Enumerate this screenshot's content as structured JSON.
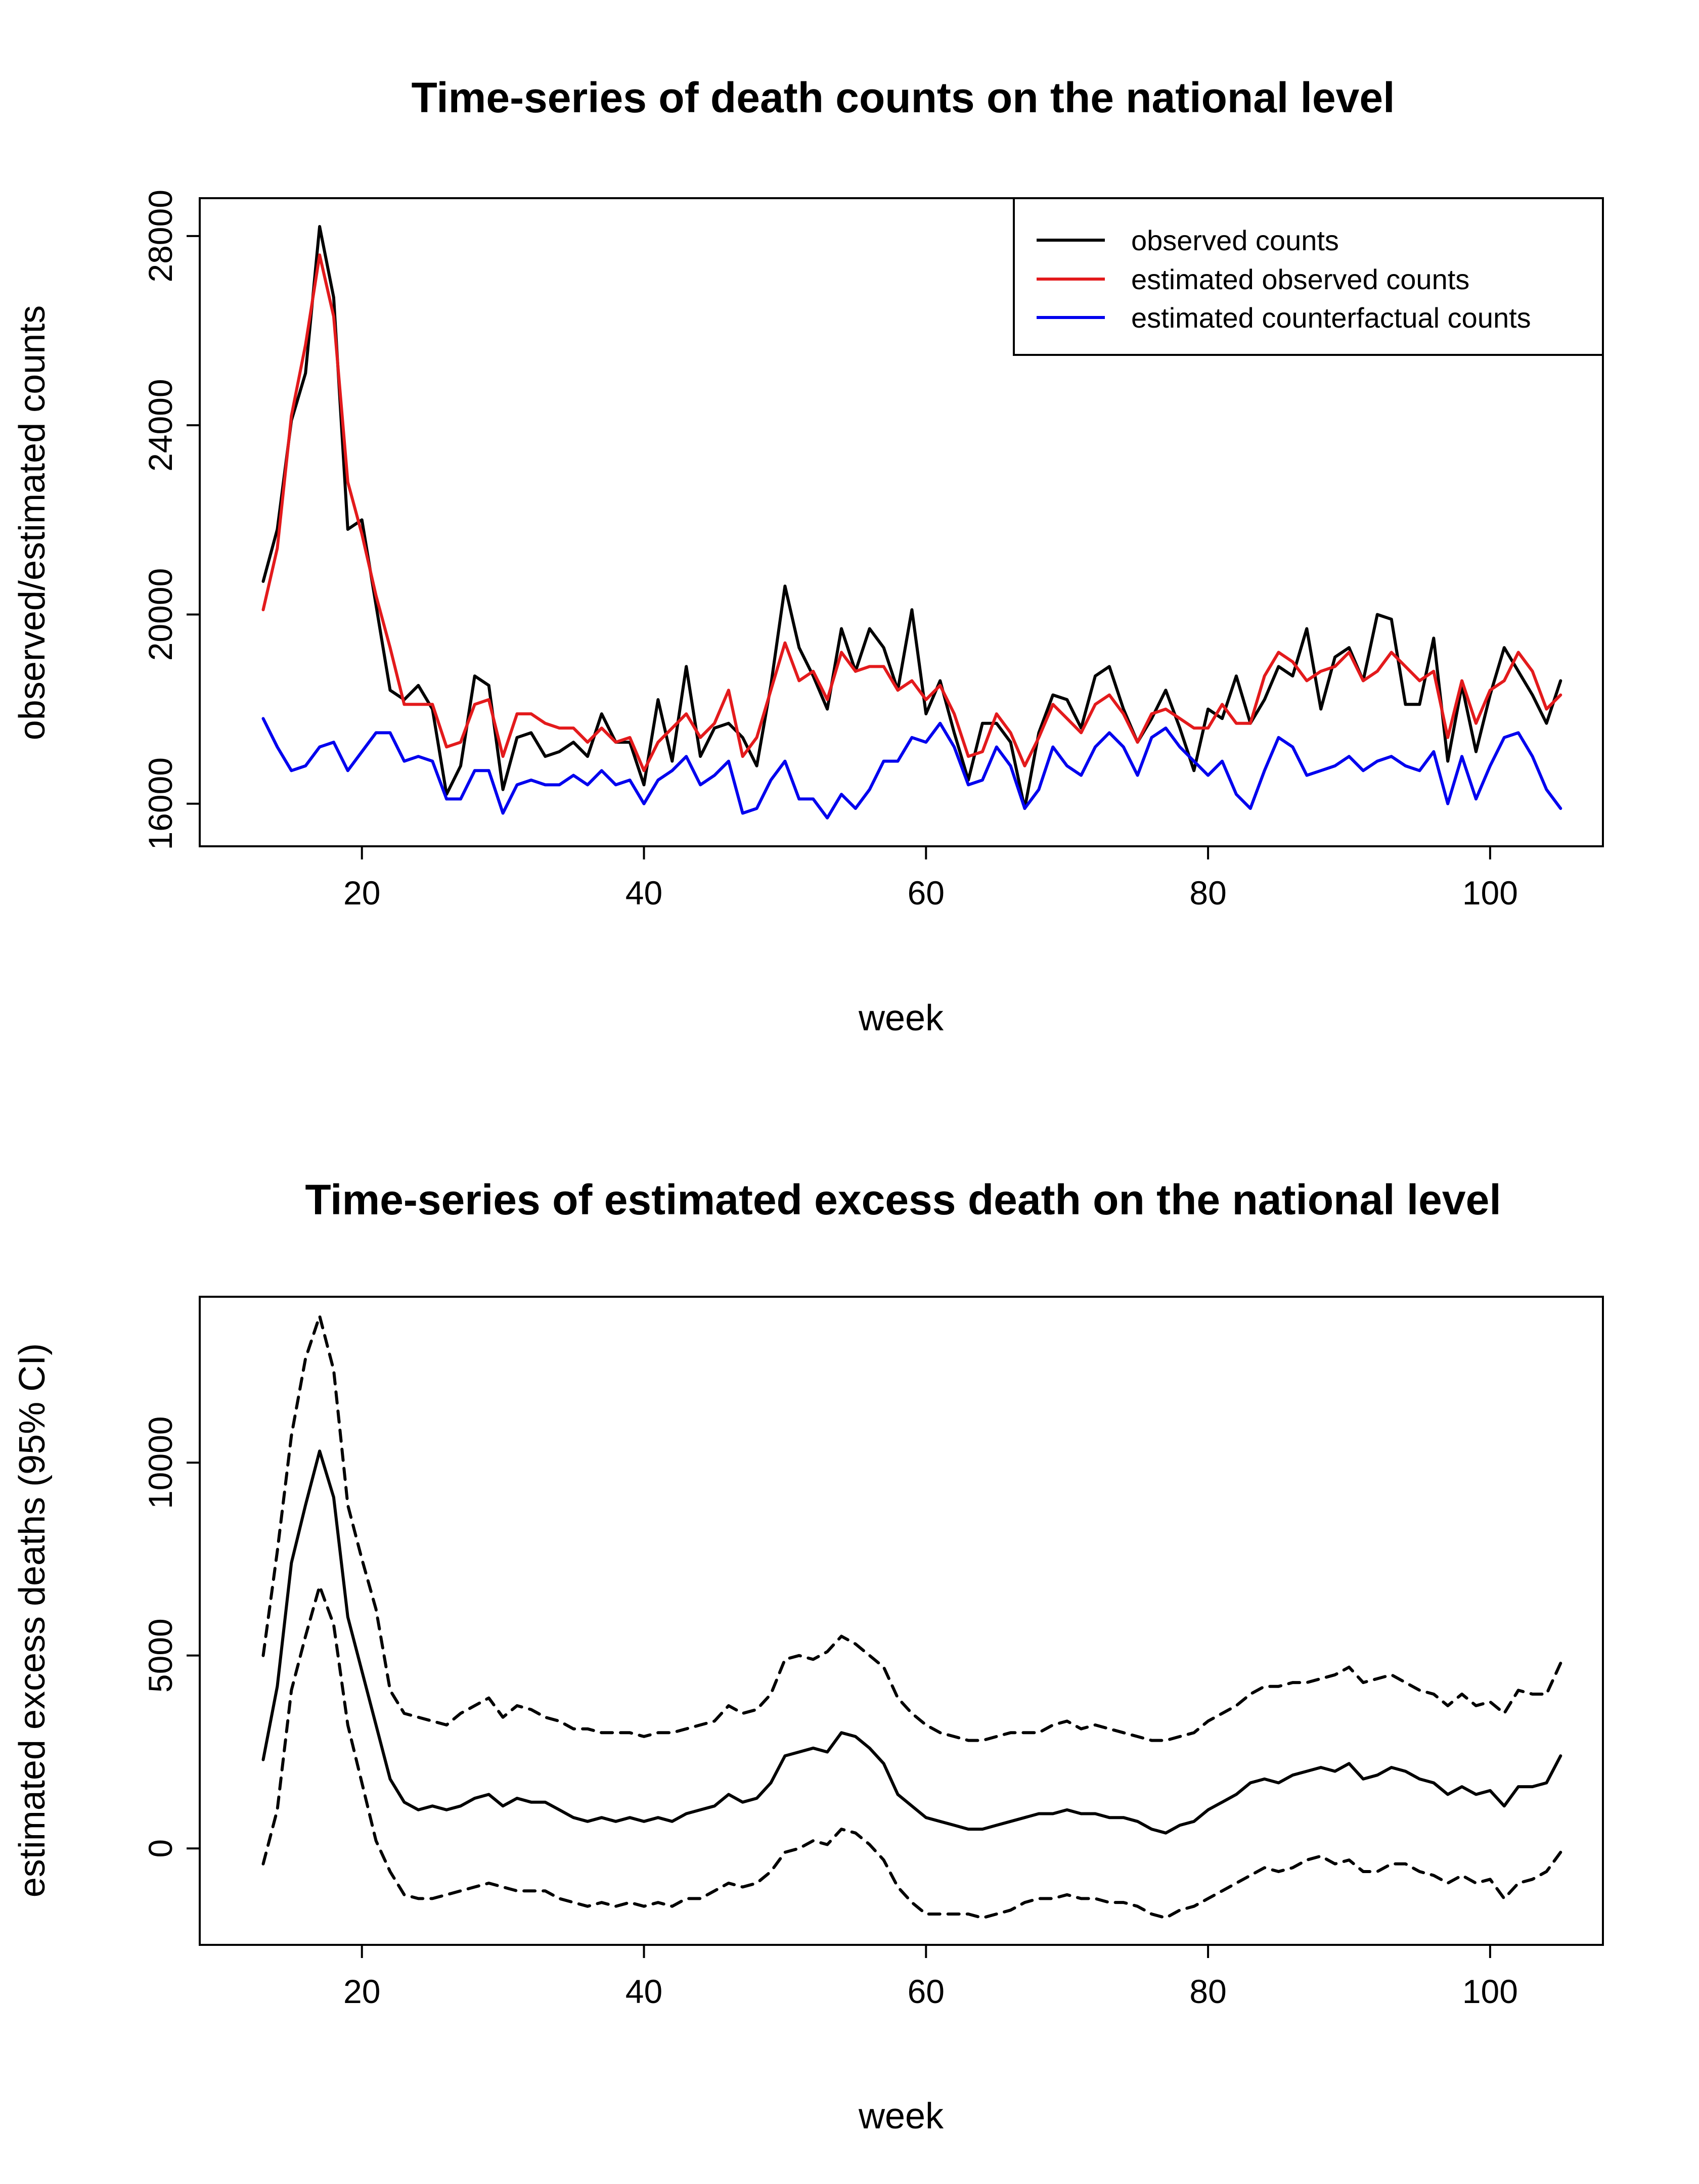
{
  "chart_data": [
    {
      "type": "line",
      "title": "Time-series of death counts on the national level",
      "xlabel": "week",
      "ylabel": "observed/estimated counts",
      "xlim": [
        8.5,
        108
      ],
      "ylim": [
        15100,
        28800
      ],
      "xticks": [
        20,
        40,
        60,
        80,
        100
      ],
      "yticks": [
        16000,
        20000,
        24000,
        28000
      ],
      "legend": {
        "placement": "top-right",
        "entries": [
          "observed counts",
          "estimated observed counts",
          "estimated counterfactual counts"
        ]
      },
      "series": [
        {
          "name": "observed counts",
          "color": "#000000",
          "style": "solid",
          "x_start": 13,
          "values": [
            20700,
            21800,
            24100,
            25100,
            28200,
            26700,
            21800,
            22000,
            20200,
            18400,
            18200,
            18500,
            18000,
            16200,
            16800,
            18700,
            18500,
            16300,
            17400,
            17500,
            17000,
            17100,
            17300,
            17000,
            17900,
            17300,
            17300,
            16400,
            18200,
            16900,
            18900,
            17000,
            17600,
            17700,
            17400,
            16800,
            18500,
            20600,
            19300,
            18700,
            18000,
            19700,
            18800,
            19700,
            19300,
            18400,
            20100,
            17900,
            18600,
            17500,
            16500,
            17700,
            17700,
            17300,
            15900,
            17500,
            18300,
            18200,
            17600,
            18700,
            18900,
            18000,
            17300,
            17800,
            18400,
            17600,
            16700,
            18000,
            17800,
            18700,
            17700,
            18200,
            18900,
            18700,
            19700,
            18000,
            19100,
            19300,
            18600,
            20000,
            19900,
            18100,
            18100,
            19500,
            16900,
            18500,
            17100,
            18300,
            19300,
            18800,
            18300,
            17700,
            18600
          ]
        },
        {
          "name": "estimated observed counts",
          "color": "#e31a1c",
          "style": "solid",
          "x_start": 13,
          "values": [
            20100,
            21400,
            24200,
            25700,
            27600,
            26300,
            22800,
            21700,
            20400,
            19300,
            18100,
            18100,
            18100,
            17200,
            17300,
            18100,
            18200,
            17000,
            17900,
            17900,
            17700,
            17600,
            17600,
            17300,
            17600,
            17300,
            17400,
            16700,
            17300,
            17600,
            17900,
            17400,
            17700,
            18400,
            17000,
            17400,
            18400,
            19400,
            18600,
            18800,
            18200,
            19200,
            18800,
            18900,
            18900,
            18400,
            18600,
            18200,
            18500,
            17900,
            17000,
            17100,
            17900,
            17500,
            16800,
            17400,
            18100,
            17800,
            17500,
            18100,
            18300,
            17900,
            17300,
            17900,
            18000,
            17800,
            17600,
            17600,
            18100,
            17700,
            17700,
            18700,
            19200,
            19000,
            18600,
            18800,
            18900,
            19200,
            18600,
            18800,
            19200,
            18900,
            18600,
            18800,
            17400,
            18600,
            17700,
            18400,
            18600,
            19200,
            18800,
            18000,
            18300
          ]
        },
        {
          "name": "estimated counterfactual counts",
          "color": "#0000ee",
          "style": "solid",
          "x_start": 13,
          "values": [
            17800,
            17200,
            16700,
            16800,
            17200,
            17300,
            16700,
            17100,
            17500,
            17500,
            16900,
            17000,
            16900,
            16100,
            16100,
            16700,
            16700,
            15800,
            16400,
            16500,
            16400,
            16400,
            16600,
            16400,
            16700,
            16400,
            16500,
            16000,
            16500,
            16700,
            17000,
            16400,
            16600,
            16900,
            15800,
            15900,
            16500,
            16900,
            16100,
            16100,
            15700,
            16200,
            15900,
            16300,
            16900,
            16900,
            17400,
            17300,
            17700,
            17200,
            16400,
            16500,
            17200,
            16800,
            15900,
            16300,
            17200,
            16800,
            16600,
            17200,
            17500,
            17200,
            16600,
            17400,
            17600,
            17200,
            16900,
            16600,
            16900,
            16200,
            15900,
            16700,
            17400,
            17200,
            16600,
            16700,
            16800,
            17000,
            16700,
            16900,
            17000,
            16800,
            16700,
            17100,
            16000,
            17000,
            16100,
            16800,
            17400,
            17500,
            17000,
            16300,
            15900
          ]
        }
      ]
    },
    {
      "type": "line",
      "title": "Time-series of estimated excess death on the national level",
      "xlabel": "week",
      "ylabel": "estimated excess deaths (95% CI)",
      "xlim": [
        8.5,
        108
      ],
      "ylim": [
        -2500,
        14300
      ],
      "xticks": [
        20,
        40,
        60,
        80,
        100
      ],
      "yticks": [
        0,
        5000,
        10000
      ],
      "series": [
        {
          "color": "#000000",
          "style": "solid",
          "x_start": 13,
          "values": [
            2300,
            4200,
            7400,
            8900,
            10300,
            9100,
            6000,
            4600,
            3200,
            1800,
            1200,
            1000,
            1100,
            1000,
            1100,
            1300,
            1400,
            1100,
            1300,
            1200,
            1200,
            1000,
            800,
            700,
            800,
            700,
            800,
            700,
            800,
            700,
            900,
            1000,
            1100,
            1400,
            1200,
            1300,
            1700,
            2400,
            2500,
            2600,
            2500,
            3000,
            2900,
            2600,
            2200,
            1400,
            1100,
            800,
            700,
            600,
            500,
            500,
            600,
            700,
            800,
            900,
            900,
            1000,
            900,
            900,
            800,
            800,
            700,
            500,
            400,
            600,
            700,
            1000,
            1200,
            1400,
            1700,
            1800,
            1700,
            1900,
            2000,
            2100,
            2000,
            2200,
            1800,
            1900,
            2100,
            2000,
            1800,
            1700,
            1400,
            1600,
            1400,
            1500,
            1100,
            1600,
            1600,
            1700,
            2400
          ]
        },
        {
          "color": "#000000",
          "style": "dashed",
          "x_start": 13,
          "values": [
            5000,
            7700,
            10700,
            12700,
            13800,
            12400,
            8900,
            7500,
            6200,
            4100,
            3500,
            3400,
            3300,
            3200,
            3500,
            3700,
            3900,
            3400,
            3700,
            3600,
            3400,
            3300,
            3100,
            3100,
            3000,
            3000,
            3000,
            2900,
            3000,
            3000,
            3100,
            3200,
            3300,
            3700,
            3500,
            3600,
            4000,
            4900,
            5000,
            4900,
            5100,
            5500,
            5300,
            5000,
            4700,
            3900,
            3500,
            3200,
            3000,
            2900,
            2800,
            2800,
            2900,
            3000,
            3000,
            3000,
            3200,
            3300,
            3100,
            3200,
            3100,
            3000,
            2900,
            2800,
            2800,
            2900,
            3000,
            3300,
            3500,
            3700,
            4000,
            4200,
            4200,
            4300,
            4300,
            4400,
            4500,
            4700,
            4300,
            4400,
            4500,
            4300,
            4100,
            4000,
            3700,
            4000,
            3700,
            3800,
            3500,
            4100,
            4000,
            4000,
            4800
          ]
        },
        {
          "color": "#000000",
          "style": "dashed",
          "x_start": 13,
          "values": [
            -400,
            1000,
            4100,
            5500,
            6800,
            5800,
            3200,
            1700,
            200,
            -600,
            -1200,
            -1300,
            -1300,
            -1200,
            -1100,
            -1000,
            -900,
            -1000,
            -1100,
            -1100,
            -1100,
            -1300,
            -1400,
            -1500,
            -1400,
            -1500,
            -1400,
            -1500,
            -1400,
            -1500,
            -1300,
            -1300,
            -1100,
            -900,
            -1000,
            -900,
            -600,
            -100,
            0,
            200,
            100,
            500,
            400,
            100,
            -300,
            -1000,
            -1400,
            -1700,
            -1700,
            -1700,
            -1700,
            -1800,
            -1700,
            -1600,
            -1400,
            -1300,
            -1300,
            -1200,
            -1300,
            -1300,
            -1400,
            -1400,
            -1500,
            -1700,
            -1800,
            -1600,
            -1500,
            -1300,
            -1100,
            -900,
            -700,
            -500,
            -600,
            -500,
            -300,
            -200,
            -400,
            -300,
            -600,
            -600,
            -400,
            -400,
            -600,
            -700,
            -900,
            -700,
            -900,
            -800,
            -1300,
            -900,
            -800,
            -600,
            -100
          ]
        }
      ]
    }
  ]
}
